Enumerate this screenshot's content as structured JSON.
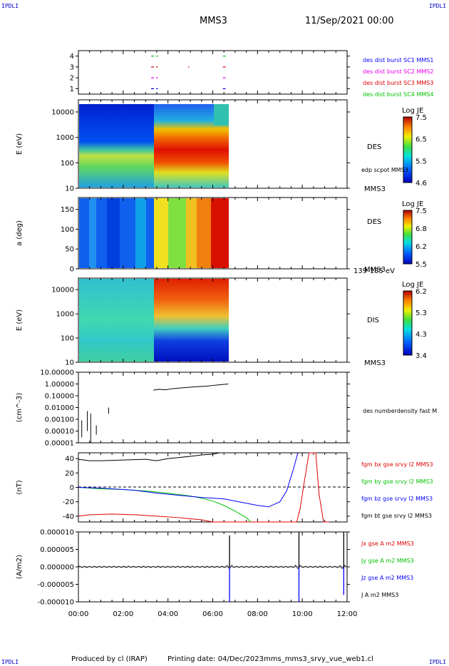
{
  "header": {
    "corner_label": "IPDLI",
    "spacecraft": "MMS3",
    "datetime": "11/Sep/2021 00:00"
  },
  "footer": {
    "produced_by": "Produced by cl (IRAP)",
    "printing_date": "Printing date: 04/Dec/2023",
    "filename": "mms_mms3_srvy_vue_web1.cl"
  },
  "time_axis": {
    "tick_labels": [
      "00:00",
      "02:00",
      "04:00",
      "06:00",
      "08:00",
      "10:00",
      "12:00"
    ],
    "range_hours": [
      0,
      12
    ]
  },
  "colors": {
    "blue": "#0000ff",
    "magenta": "#e600e6",
    "red": "#e00000",
    "green": "#00c000",
    "black": "#000000"
  },
  "chart_data": [
    {
      "type": "scatter",
      "panel": "burst",
      "yticks": [
        "1",
        "2",
        "3",
        "4"
      ],
      "ylim": [
        0.5,
        4.5
      ],
      "series": [
        {
          "name": "des dist burst SC1 MMS1",
          "color": "#0000ff",
          "level": 1,
          "segments_hours": [
            [
              3.25,
              3.55
            ],
            [
              6.45,
              6.6
            ]
          ]
        },
        {
          "name": "des dist burst SC2 MMS2",
          "color": "#e600e6",
          "level": 2,
          "segments_hours": [
            [
              3.25,
              3.55
            ],
            [
              6.45,
              6.6
            ]
          ]
        },
        {
          "name": "des dist burst SC3 MMS3",
          "color": "#e00000",
          "level": 3,
          "segments_hours": [
            [
              3.25,
              3.55
            ],
            [
              4.9,
              4.95
            ],
            [
              6.45,
              6.6
            ]
          ]
        },
        {
          "name": "des dist burst SC4 MMS4",
          "color": "#00c000",
          "level": 4,
          "segments_hours": [
            [
              3.25,
              3.55
            ],
            [
              6.45,
              6.6
            ]
          ]
        }
      ]
    },
    {
      "type": "heatmap",
      "panel": "des_energy",
      "ylabel": "E (eV)",
      "yticks": [
        "10000",
        "1000",
        "100",
        "10"
      ],
      "ylog": true,
      "ylim": [
        10,
        30000
      ],
      "label": "DES",
      "label2": "MMS3",
      "overlay_label": "edp scpot MMS3",
      "colorbar": {
        "title": "Log JE",
        "ticks": [
          "7.5",
          "6.5",
          "5.5",
          "4.6"
        ],
        "range": [
          4.6,
          7.5
        ]
      },
      "data_end_hours": 6.7
    },
    {
      "type": "heatmap",
      "panel": "des_pitch",
      "ylabel": "a (deg)",
      "yticks": [
        "150",
        "100",
        "50",
        "0"
      ],
      "ylim": [
        0,
        180
      ],
      "label": "DES",
      "label2": "MMS3",
      "energy_range": "139-185 eV",
      "colorbar": {
        "title": "Log JE",
        "ticks": [
          "7.5",
          "6.8",
          "6.2",
          "5.5"
        ],
        "range": [
          5.5,
          7.5
        ]
      },
      "data_end_hours": 6.7
    },
    {
      "type": "heatmap",
      "panel": "dis_energy",
      "ylabel": "E (eV)",
      "yticks": [
        "10000",
        "1000",
        "100",
        "10"
      ],
      "ylog": true,
      "ylim": [
        10,
        30000
      ],
      "label": "DIS",
      "label2": "MMS3",
      "colorbar": {
        "title": "Log JE",
        "ticks": [
          "6.2",
          "5.3",
          "4.3",
          "3.4"
        ],
        "range": [
          3.4,
          6.2
        ]
      },
      "data_end_hours": 6.7
    },
    {
      "type": "line",
      "panel": "density",
      "ylabel": "(cm^-3)",
      "yticks": [
        "10.00000",
        "1.00000",
        "0.10000",
        "0.01000",
        "0.00100",
        "0.00010",
        "0.00001"
      ],
      "ylog": true,
      "ylim": [
        1e-05,
        10
      ],
      "series": [
        {
          "name": "des numberdensity fast M",
          "color": "#000000",
          "x": [
            3.35,
            3.6,
            3.9,
            4.2,
            4.5,
            4.8,
            5.1,
            5.4,
            5.7,
            6.0,
            6.3,
            6.7
          ],
          "y": [
            0.3,
            0.35,
            0.32,
            0.4,
            0.45,
            0.5,
            0.55,
            0.6,
            0.65,
            0.75,
            0.85,
            1.0
          ]
        }
      ]
    },
    {
      "type": "line",
      "panel": "fgm",
      "ylabel": "(nT)",
      "yticks": [
        "40",
        "20",
        "0",
        "-20",
        "-40"
      ],
      "ylim": [
        -48,
        48
      ],
      "series": [
        {
          "name": "fgm bx gse srvy l2 MMS3",
          "color": "#e00000",
          "x": [
            0,
            0.5,
            1.5,
            2.5,
            3.5,
            4.5,
            5.5,
            6,
            9.75,
            9.9,
            10.1,
            10.3,
            10.6,
            10.75,
            10.95,
            11.2
          ],
          "y": [
            -40,
            -38,
            -37,
            -38,
            -40,
            -42,
            -45,
            -48,
            -48,
            -30,
            10,
            48,
            48,
            -10,
            -48,
            -48
          ]
        },
        {
          "name": "fgm by gse srvy l2 MMS3",
          "color": "#00c000",
          "x": [
            0,
            1,
            2,
            3,
            4,
            5,
            5.5,
            6,
            6.5,
            7,
            7.5,
            7.7
          ],
          "y": [
            0,
            -2,
            -3,
            -5,
            -8,
            -12,
            -15,
            -19,
            -25,
            -33,
            -42,
            -48
          ]
        },
        {
          "name": "fgm bz gse srvy l2 MMS3",
          "color": "#0000ff",
          "x": [
            0,
            1,
            1.5,
            2.5,
            3.5,
            4.5,
            5.5,
            6.5,
            7.5,
            8,
            8.5,
            9,
            9.3,
            9.6,
            9.8
          ],
          "y": [
            0,
            -1,
            -2,
            -4,
            -8,
            -11,
            -14,
            -16,
            -22,
            -25,
            -27,
            -20,
            -5,
            25,
            48
          ]
        },
        {
          "name": "fgm bt gse srvy l2 MMS3",
          "color": "#000000",
          "x": [
            0,
            0.5,
            1,
            2,
            3,
            3.5,
            4,
            5,
            5.5,
            6,
            6.3
          ],
          "y": [
            39,
            37,
            37,
            38,
            39,
            37,
            40,
            43,
            45,
            46,
            48
          ]
        }
      ]
    },
    {
      "type": "line",
      "panel": "current",
      "ylabel": "(A/m2)",
      "yticks": [
        "0.000010",
        "0.000005",
        "0.000000",
        "-0.000005",
        "-0.000010"
      ],
      "ylim": [
        -1e-05,
        1e-05
      ],
      "series": [
        {
          "name": "Jx gse A m2 MMS3",
          "color": "#e00000"
        },
        {
          "name": "Jy gse A m2 MMS3",
          "color": "#00c000"
        },
        {
          "name": "Jz gse A m2 MMS3",
          "color": "#0000ff",
          "spikes_x": [
            6.75,
            9.85,
            11.85
          ],
          "spikes_y": [
            -1e-05,
            -1e-05,
            -8e-06
          ]
        },
        {
          "name": "J A m2 MMS3",
          "color": "#000000",
          "spikes_x": [
            6.75,
            9.85,
            11.85
          ],
          "spikes_y": [
            9e-06,
            1e-05,
            1e-05
          ]
        }
      ]
    }
  ]
}
